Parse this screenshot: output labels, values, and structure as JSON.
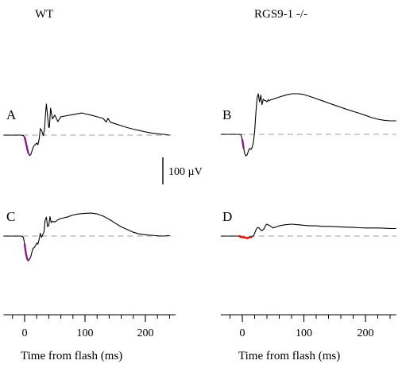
{
  "chart_data": {
    "type": "line",
    "xlabel": "Time from flash (ms)",
    "x_ticks": [
      0,
      100,
      200
    ],
    "x_minor_ticks": [
      -20,
      20,
      40,
      60,
      80,
      120,
      140,
      160,
      180,
      220,
      240
    ],
    "xlim": [
      -35,
      250
    ],
    "scale_bar": {
      "label": "100 µV",
      "value": 100
    },
    "colors": {
      "trace": "#000000",
      "baseline": "#b0b0b0",
      "a_wave": "#8b1a8b",
      "highlight": "#ff0000"
    },
    "columns": [
      {
        "title": "WT"
      },
      {
        "title": "RGS9-1 -/-"
      }
    ],
    "panels": [
      {
        "id": "A",
        "label": "A",
        "column": 0,
        "ylim": [
          -125,
          130
        ],
        "overlay_range": [
          0,
          7
        ],
        "overlay_color": "#8b1a8b",
        "series": [
          {
            "x": [
              -35,
              -5,
              -2,
              0,
              2,
              4,
              6,
              8,
              10,
              12,
              14,
              16,
              18,
              20,
              22,
              24,
              26,
              28,
              30,
              31,
              33,
              35,
              36,
              38,
              40,
              41,
              43,
              46,
              50,
              55,
              60,
              70,
              80,
              90,
              95,
              100,
              110,
              120,
              130,
              135,
              138,
              142,
              150,
              160,
              170,
              180,
              190,
              200,
              210,
              220,
              230,
              240
            ],
            "y": [
              0,
              0,
              -2,
              -8,
              -26,
              -48,
              -66,
              -75,
              -73,
              -60,
              -46,
              -38,
              -34,
              -29,
              -36,
              -16,
              24,
              18,
              4,
              -2,
              25,
              90,
              115,
              70,
              28,
              30,
              100,
              60,
              74,
              50,
              68,
              72,
              76,
              80,
              82,
              79,
              74,
              68,
              62,
              48,
              62,
              48,
              42,
              35,
              28,
              22,
              17,
              12,
              8,
              5,
              3,
              0
            ]
          }
        ]
      },
      {
        "id": "B",
        "label": "B",
        "column": 1,
        "ylim": [
          -125,
          160
        ],
        "overlay_range": [
          0,
          3
        ],
        "overlay_color": "#8b1a8b",
        "series": [
          {
            "x": [
              -35,
              -5,
              -2,
              0,
              2,
              4,
              6,
              8,
              10,
              12,
              14,
              16,
              18,
              20,
              22,
              24,
              26,
              28,
              30,
              32,
              34,
              36,
              38,
              40,
              42,
              44,
              46,
              50,
              55,
              60,
              70,
              80,
              90,
              95,
              100,
              110,
              120,
              130,
              140,
              150,
              160,
              170,
              180,
              190,
              200,
              210,
              220,
              230,
              240,
              250
            ],
            "y": [
              0,
              0,
              -2,
              -20,
              -50,
              -72,
              -80,
              -75,
              -60,
              -52,
              -56,
              -48,
              -30,
              10,
              80,
              135,
              150,
              120,
              145,
              110,
              130,
              125,
              125,
              120,
              128,
              124,
              128,
              130,
              134,
              138,
              145,
              150,
              150,
              149,
              147,
              140,
              132,
              124,
              116,
              108,
              100,
              92,
              85,
              78,
              70,
              62,
              56,
              52,
              50,
              50
            ]
          }
        ]
      },
      {
        "id": "C",
        "label": "C",
        "column": 0,
        "ylim": [
          -125,
          130
        ],
        "overlay_range": [
          0,
          7
        ],
        "overlay_color": "#8b1a8b",
        "series": [
          {
            "x": [
              -35,
              -5,
              -2,
              0,
              2,
              4,
              6,
              8,
              10,
              12,
              14,
              16,
              18,
              20,
              22,
              24,
              26,
              28,
              30,
              32,
              34,
              36,
              38,
              40,
              42,
              44,
              46,
              50,
              55,
              60,
              70,
              80,
              90,
              100,
              110,
              120,
              130,
              140,
              150,
              160,
              170,
              180,
              190,
              200,
              210,
              220,
              230,
              240
            ],
            "y": [
              0,
              0,
              -5,
              -30,
              -62,
              -83,
              -90,
              -86,
              -78,
              -60,
              -46,
              -42,
              -36,
              -26,
              -30,
              -12,
              10,
              -5,
              5,
              15,
              58,
              70,
              35,
              40,
              72,
              50,
              55,
              52,
              60,
              65,
              70,
              78,
              82,
              84,
              85,
              82,
              74,
              62,
              48,
              34,
              24,
              14,
              8,
              5,
              3,
              1,
              0,
              2
            ]
          }
        ]
      },
      {
        "id": "D",
        "label": "D",
        "column": 1,
        "ylim": [
          -125,
          160
        ],
        "overlay_range": [
          -5,
          15
        ],
        "overlay_color": "#ff0000",
        "series": [
          {
            "x": [
              -35,
              -10,
              -5,
              -3,
              0,
              3,
              5,
              8,
              10,
              12,
              15,
              18,
              20,
              22,
              24,
              26,
              28,
              30,
              32,
              35,
              38,
              40,
              45,
              50,
              55,
              60,
              70,
              80,
              90,
              100,
              110,
              120,
              130,
              140,
              150,
              160,
              170,
              180,
              190,
              200,
              210,
              220,
              230,
              240,
              250
            ],
            "y": [
              0,
              0,
              0,
              -2,
              -4,
              -5,
              -6,
              -7,
              -6,
              -4,
              -3,
              0,
              10,
              22,
              30,
              32,
              28,
              22,
              20,
              26,
              40,
              44,
              38,
              30,
              34,
              38,
              42,
              44,
              42,
              40,
              38,
              38,
              36,
              36,
              35,
              34,
              33,
              32,
              31,
              30,
              30,
              30,
              29,
              28,
              28
            ]
          }
        ]
      }
    ]
  }
}
